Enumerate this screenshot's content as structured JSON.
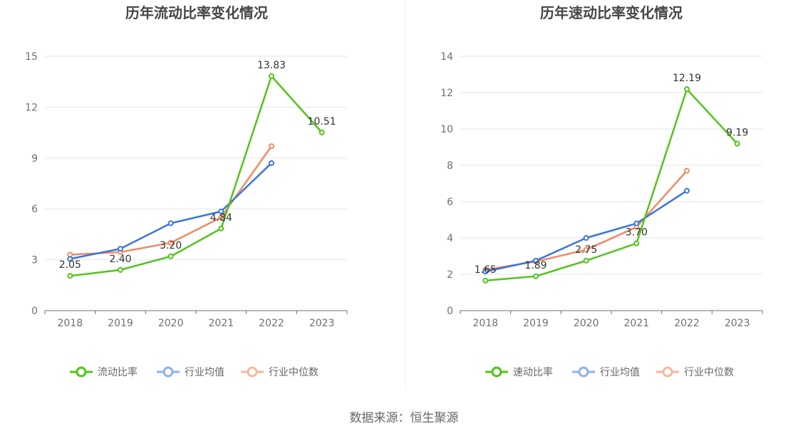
{
  "source": "数据来源：恒生聚源",
  "colors": {
    "main": "#52c41a",
    "avg": "#3a75d9",
    "median": "#f08a62",
    "grid": "#e3e6ee",
    "axis": "#6e7079",
    "tick_text": "#6e7079",
    "label_text": "#333333",
    "title_text": "#464646",
    "legend_text": "#666666",
    "avg_legend": "#8fb0ea",
    "median_legend": "#f6b7a0"
  },
  "chart_data": [
    {
      "type": "line",
      "title": "历年流动比率变化情况",
      "categories": [
        "2018",
        "2019",
        "2020",
        "2021",
        "2022",
        "2023"
      ],
      "yticks": [
        0,
        3,
        6,
        9,
        12,
        15
      ],
      "ylim": [
        0,
        15
      ],
      "grid": true,
      "legend_position": "bottom",
      "series": [
        {
          "name": "流动比率",
          "values": [
            2.05,
            2.4,
            3.2,
            4.84,
            13.83,
            10.51
          ],
          "labels": [
            "2.05",
            "2.40",
            "3.20",
            "4.84",
            "13.83",
            "10.51"
          ]
        },
        {
          "name": "行业均值",
          "values": [
            3.05,
            3.65,
            5.15,
            5.85,
            8.7,
            null
          ]
        },
        {
          "name": "行业中位数",
          "values": [
            3.3,
            3.45,
            4.0,
            5.5,
            9.7,
            null
          ]
        }
      ]
    },
    {
      "type": "line",
      "title": "历年速动比率变化情况",
      "categories": [
        "2018",
        "2019",
        "2020",
        "2021",
        "2022",
        "2023"
      ],
      "yticks": [
        0,
        2,
        4,
        6,
        8,
        10,
        12,
        14
      ],
      "ylim": [
        0,
        14
      ],
      "grid": true,
      "legend_position": "bottom",
      "series": [
        {
          "name": "速动比率",
          "values": [
            1.65,
            1.89,
            2.75,
            3.7,
            12.19,
            9.19
          ],
          "labels": [
            "1.65",
            "1.89",
            "2.75",
            "3.70",
            "12.19",
            "9.19"
          ]
        },
        {
          "name": "行业均值",
          "values": [
            2.15,
            2.75,
            4.0,
            4.8,
            6.6,
            null
          ]
        },
        {
          "name": "行业中位数",
          "values": [
            2.25,
            2.7,
            3.35,
            4.6,
            7.7,
            null
          ]
        }
      ]
    }
  ]
}
